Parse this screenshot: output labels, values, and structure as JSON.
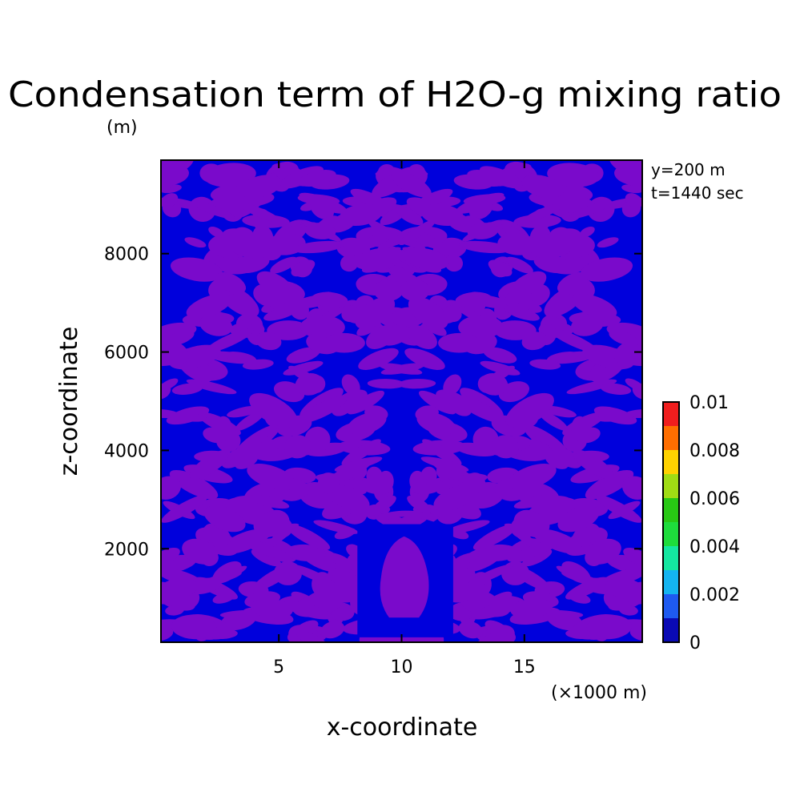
{
  "chart_data": {
    "type": "heatmap",
    "title": "Condensation term of H2O-g mixing ratio",
    "units_label": "(m)",
    "xlabel": "x-coordinate",
    "ylabel": "z-coordinate",
    "x_unit_label": "(×1000 m)",
    "annotations": [
      "y=200 m",
      "t=1440 sec"
    ],
    "xlim": [
      0.2,
      19.8
    ],
    "ylim": [
      100,
      9900
    ],
    "x_ticks": [
      5,
      10,
      15
    ],
    "x_tick_labels": [
      "5",
      "10",
      "15"
    ],
    "y_ticks": [
      2000,
      4000,
      6000,
      8000
    ],
    "y_tick_labels": [
      "2000",
      "4000",
      "6000",
      "8000"
    ],
    "colorbar": {
      "min": 0,
      "max": 0.01,
      "tick_labels": [
        "0",
        "0.002",
        "0.004",
        "0.006",
        "0.008",
        "0.01"
      ],
      "levels": [
        0,
        0.001,
        0.002,
        0.003,
        0.004,
        0.005,
        0.006,
        0.007,
        0.008,
        0.009,
        0.01
      ],
      "colors": [
        "#0a0ab4",
        "#1e5af0",
        "#14b4f0",
        "#14e6a0",
        "#1edc3c",
        "#28c814",
        "#a0dc14",
        "#ffd200",
        "#ff6e00",
        "#f01e1e"
      ]
    },
    "background_color": "#0000dc",
    "field_color": "#7a0acb",
    "features": [
      {
        "type": "cloud_core",
        "x_center": 10.1,
        "z_bottom": 600,
        "z_top": 2250,
        "value_level": "upper"
      },
      {
        "type": "updraft_column",
        "x_range": [
          8.2,
          12.1
        ],
        "z_range": [
          200,
          2500
        ]
      }
    ]
  }
}
